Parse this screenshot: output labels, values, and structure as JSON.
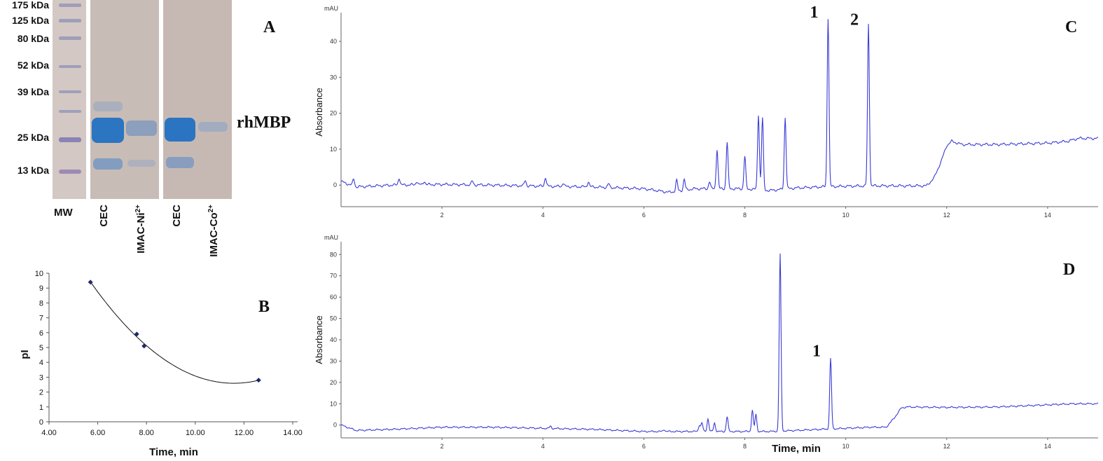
{
  "colors": {
    "trace": "#3a3ad6",
    "marker": "#1f2a6b",
    "axis": "#444444",
    "gel_bg": "#c9bcb6",
    "band": "#1c6fc4"
  },
  "gel": {
    "panel_label": "A",
    "mw_markers": [
      "175 kDa",
      "125 kDa",
      "80 kDa",
      "52 kDa",
      "39 kDa",
      "25 kDa",
      "13 kDa"
    ],
    "band_label": "rhMBP",
    "lanes": [
      "MW",
      "CEC",
      "IMAC-Ni",
      "CEC",
      "IMAC-Co"
    ],
    "lane_superscripts": [
      "",
      "",
      "2+",
      "",
      "2+"
    ]
  },
  "chart_data": [
    {
      "panel_label": "B",
      "type": "scatter",
      "xlabel": "Time, min",
      "ylabel": "pI",
      "xlim": [
        4,
        14
      ],
      "ylim": [
        0,
        10
      ],
      "x_ticks": [
        "4.00",
        "6.00",
        "8.00",
        "10.00",
        "12.00",
        "14.00"
      ],
      "y_ticks": [
        "0",
        "1",
        "2",
        "3",
        "4",
        "5",
        "6",
        "7",
        "8",
        "9",
        "10"
      ],
      "points": [
        {
          "x": 5.7,
          "y": 9.4
        },
        {
          "x": 7.6,
          "y": 5.9
        },
        {
          "x": 7.9,
          "y": 5.1
        },
        {
          "x": 12.6,
          "y": 2.8
        }
      ],
      "trendline": "polynomial",
      "grid": false
    },
    {
      "panel_label": "C",
      "type": "line",
      "xlabel": "",
      "ylabel": "Absorbance",
      "unit_label": "mAU",
      "xlim": [
        0,
        15
      ],
      "ylim": [
        -6,
        48
      ],
      "x_ticks": [
        2,
        4,
        6,
        8,
        10,
        12,
        14
      ],
      "y_ticks": [
        0,
        10,
        20,
        30,
        40
      ],
      "peak_labels": [
        {
          "text": "1",
          "x": 9.65,
          "y": 47
        },
        {
          "text": "2",
          "x": 10.45,
          "y": 45
        }
      ],
      "baseline": [
        [
          0,
          1
        ],
        [
          0.3,
          -0.5
        ],
        [
          1,
          0
        ],
        [
          2,
          0.2
        ],
        [
          3,
          0
        ],
        [
          4,
          -0.3
        ],
        [
          5,
          -0.5
        ],
        [
          6,
          -1
        ],
        [
          6.5,
          -2
        ],
        [
          7,
          -1
        ],
        [
          8,
          -1
        ],
        [
          8.5,
          -1.5
        ],
        [
          9,
          -0.8
        ],
        [
          9.5,
          -0.5
        ],
        [
          10,
          -0.3
        ],
        [
          10.5,
          -0.2
        ],
        [
          11,
          -0.2
        ],
        [
          11.6,
          -0.2
        ],
        [
          11.75,
          2
        ],
        [
          11.9,
          7
        ],
        [
          12.0,
          11
        ],
        [
          12.1,
          12.2
        ],
        [
          12.3,
          11.3
        ],
        [
          13,
          11.3
        ],
        [
          14,
          11.7
        ],
        [
          14.4,
          12.2
        ],
        [
          14.6,
          13
        ],
        [
          15,
          13
        ]
      ],
      "peaks": [
        {
          "x": 0.25,
          "h": 2
        },
        {
          "x": 1.15,
          "h": 2
        },
        {
          "x": 1.5,
          "h": 1
        },
        {
          "x": 1.65,
          "h": 1
        },
        {
          "x": 2.6,
          "h": 1
        },
        {
          "x": 3.65,
          "h": 1.5
        },
        {
          "x": 4.05,
          "h": 2.5
        },
        {
          "x": 4.4,
          "h": 1
        },
        {
          "x": 4.9,
          "h": 1.5
        },
        {
          "x": 5.3,
          "h": 1
        },
        {
          "x": 6.65,
          "h": 3
        },
        {
          "x": 6.8,
          "h": 3
        },
        {
          "x": 7.3,
          "h": 2
        },
        {
          "x": 7.45,
          "h": 11
        },
        {
          "x": 7.65,
          "h": 13
        },
        {
          "x": 8.0,
          "h": 9
        },
        {
          "x": 8.27,
          "h": 21
        },
        {
          "x": 8.35,
          "h": 20
        },
        {
          "x": 8.8,
          "h": 20
        },
        {
          "x": 9.65,
          "h": 47
        },
        {
          "x": 10.45,
          "h": 45
        }
      ]
    },
    {
      "panel_label": "D",
      "type": "line",
      "xlabel": "Time, min",
      "ylabel": "Absorbance",
      "unit_label": "mAU",
      "xlim": [
        0,
        15
      ],
      "ylim": [
        -6,
        86
      ],
      "x_ticks": [
        2,
        4,
        6,
        8,
        10,
        12,
        14
      ],
      "y_ticks": [
        0,
        10,
        20,
        30,
        40,
        50,
        60,
        70,
        80
      ],
      "peak_labels": [
        {
          "text": "1",
          "x": 9.7,
          "y": 33
        }
      ],
      "baseline": [
        [
          0,
          0
        ],
        [
          0.3,
          -2.5
        ],
        [
          1,
          -2
        ],
        [
          2,
          -1
        ],
        [
          3,
          -1
        ],
        [
          4,
          -1.5
        ],
        [
          5,
          -2
        ],
        [
          6,
          -3
        ],
        [
          7,
          -3
        ],
        [
          8,
          -3
        ],
        [
          8.5,
          -3
        ],
        [
          9,
          -2.5
        ],
        [
          9.5,
          -2
        ],
        [
          10,
          -1.5
        ],
        [
          10.5,
          -1
        ],
        [
          10.8,
          -1
        ],
        [
          10.95,
          3
        ],
        [
          11.1,
          8
        ],
        [
          11.2,
          8.5
        ],
        [
          12,
          8.3
        ],
        [
          13,
          8.5
        ],
        [
          14,
          9.5
        ],
        [
          14.5,
          10
        ],
        [
          15,
          10
        ]
      ],
      "peaks": [
        {
          "x": 4.15,
          "h": 1
        },
        {
          "x": 6.4,
          "h": 1
        },
        {
          "x": 7.1,
          "h": 3
        },
        {
          "x": 7.15,
          "h": 4
        },
        {
          "x": 7.27,
          "h": 6
        },
        {
          "x": 7.4,
          "h": 4
        },
        {
          "x": 7.65,
          "h": 7
        },
        {
          "x": 8.15,
          "h": 10
        },
        {
          "x": 8.22,
          "h": 8
        },
        {
          "x": 8.7,
          "h": 83
        },
        {
          "x": 9.7,
          "h": 33
        }
      ]
    }
  ]
}
